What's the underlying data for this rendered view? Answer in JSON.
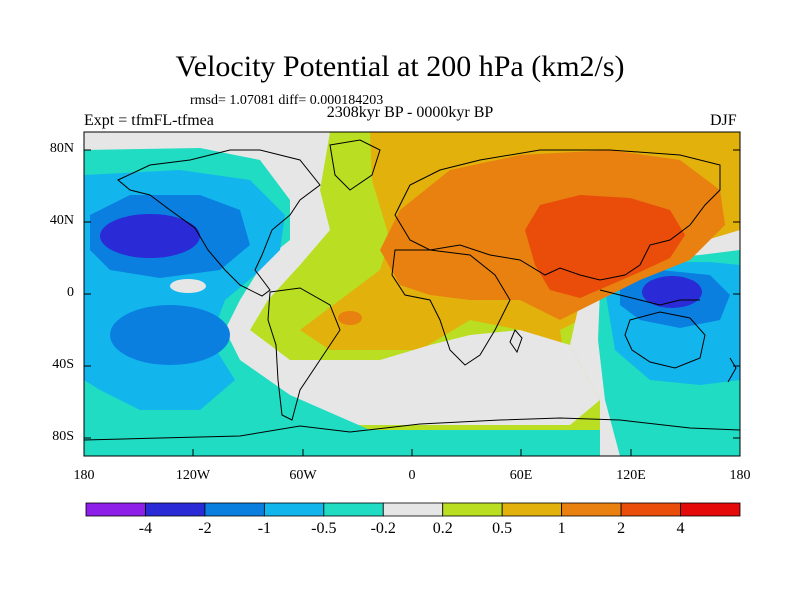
{
  "title": "Velocity Potential at 200 hPa (km2/s)",
  "stats": "rmsd= 1.07081 diff= 0.000184203",
  "experiment": "Expt = tfmFL-tfmea",
  "period": "2308kyr BP - 0000kyr BP",
  "season": "DJF",
  "lat_labels": [
    "80N",
    "40N",
    "0",
    "40S",
    "80S"
  ],
  "lon_labels": [
    "180",
    "120W",
    "60W",
    "0",
    "60E",
    "120E",
    "180"
  ],
  "colorbar": {
    "labels": [
      "-4",
      "-2",
      "-1",
      "-0.5",
      "-0.2",
      "0.2",
      "0.5",
      "1",
      "2",
      "4"
    ],
    "colors": [
      "#8d1fe8",
      "#2a2bd6",
      "#0a7fe0",
      "#12b6ec",
      "#1fdcc3",
      "#e6e6e6",
      "#b9de22",
      "#e2b10c",
      "#e8810f",
      "#ea4c0a",
      "#e50a0a"
    ]
  }
}
